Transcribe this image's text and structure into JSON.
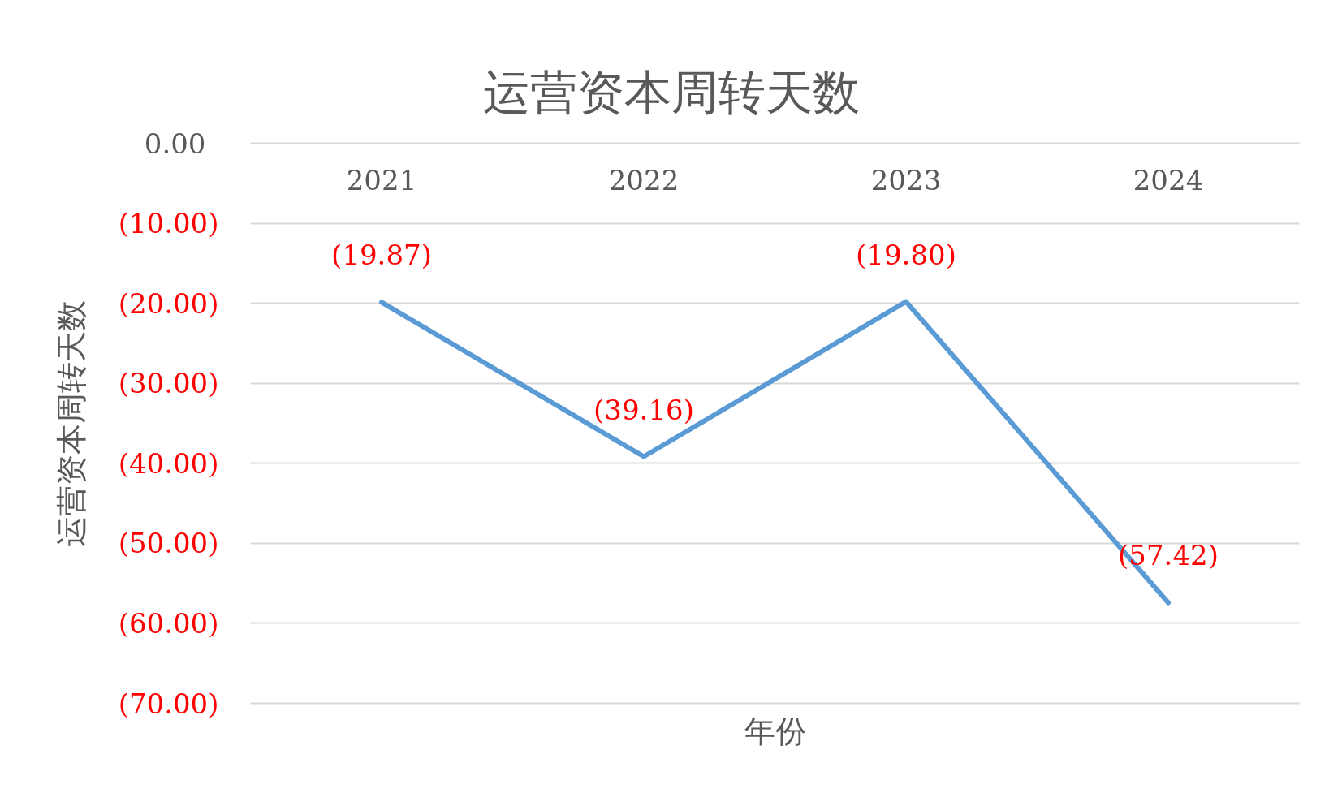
{
  "chart_data": {
    "type": "line",
    "title": "运营资本周转天数",
    "xlabel": "年份",
    "ylabel": "运营资本周转天数",
    "categories": [
      "2021",
      "2022",
      "2023",
      "2024"
    ],
    "series": [
      {
        "color": "#5b9bd5",
        "values": [
          -19.87,
          -39.16,
          -19.8,
          -57.42
        ],
        "value_labels": [
          "(19.87)",
          "(39.16)",
          "(19.80)",
          "(57.42)"
        ]
      }
    ],
    "ylim": [
      -70,
      0
    ],
    "yticks": [
      {
        "value": 0,
        "label": "0.00"
      },
      {
        "value": -10,
        "label": "(10.00)"
      },
      {
        "value": -20,
        "label": "(20.00)"
      },
      {
        "value": -30,
        "label": "(30.00)"
      },
      {
        "value": -40,
        "label": "(40.00)"
      },
      {
        "value": -50,
        "label": "(50.00)"
      },
      {
        "value": -60,
        "label": "(60.00)"
      },
      {
        "value": -70,
        "label": "(70.00)"
      }
    ],
    "grid": "y"
  }
}
